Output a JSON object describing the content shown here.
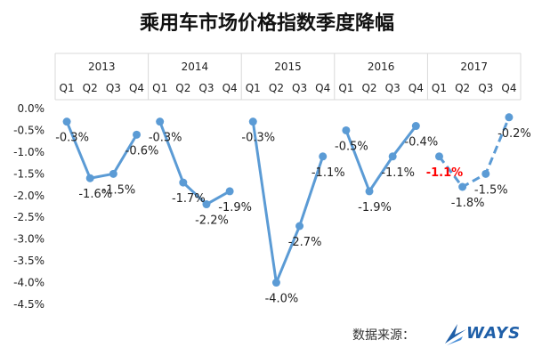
{
  "title": "乘用车市场价格指数季度降幅",
  "source_label": "数据来源：",
  "logo_text": "WAYS",
  "chart_data": {
    "type": "line",
    "title": "乘用车市场价格指数季度降幅",
    "years": [
      "2013",
      "2014",
      "2015",
      "2016",
      "2017"
    ],
    "quarters": [
      "Q1",
      "Q2",
      "Q3",
      "Q4"
    ],
    "y_ticks": [
      "0.0%",
      "-0.5%",
      "-1.0%",
      "-1.5%",
      "-2.0%",
      "-2.5%",
      "-3.0%",
      "-3.5%",
      "-4.0%",
      "-4.5%"
    ],
    "ylim": [
      -4.5,
      0
    ],
    "series": [
      {
        "year": "2013",
        "values": [
          -0.3,
          -1.6,
          -1.5,
          -0.6
        ],
        "labels": [
          "-0.3%",
          "-1.6%",
          "-1.5%",
          "-0.6%"
        ],
        "style": "solid"
      },
      {
        "year": "2014",
        "values": [
          -0.3,
          -1.7,
          -2.2,
          -1.9
        ],
        "labels": [
          "-0.3%",
          "-1.7%",
          "-2.2%",
          "-1.9%"
        ],
        "style": "solid"
      },
      {
        "year": "2015",
        "values": [
          -0.3,
          -4.0,
          -2.7,
          -1.1
        ],
        "labels": [
          "-0.3%",
          "-4.0%",
          "-2.7%",
          "-1.1%"
        ],
        "style": "solid"
      },
      {
        "year": "2016",
        "values": [
          -0.5,
          -1.9,
          -1.1,
          -0.4
        ],
        "labels": [
          "-0.5%",
          "-1.9%",
          "-1.1%",
          "-0.4%"
        ],
        "style": "solid"
      },
      {
        "year": "2017",
        "values": [
          -1.1,
          -1.8,
          -1.5,
          -0.2
        ],
        "labels": [
          "-1.1%",
          "-1.8%",
          "-1.5%",
          "-0.2%"
        ],
        "style": "dashed",
        "highlight_index": 0
      }
    ],
    "grid": false,
    "line_color": "#5b9bd5",
    "highlight_color": "#ff0000"
  }
}
